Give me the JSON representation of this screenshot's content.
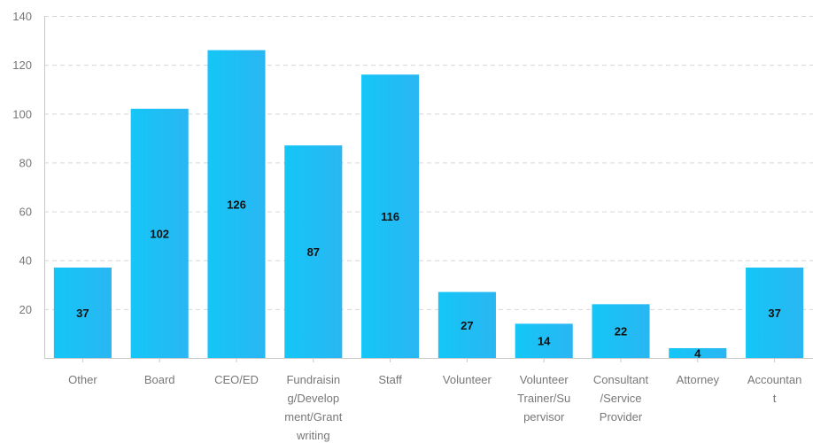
{
  "chart_data": {
    "type": "bar",
    "categories": [
      "Other",
      "Board",
      "CEO/ED",
      "Fundraising/Development/Grant writing",
      "Staff",
      "Volunteer",
      "Volunteer Trainer/Supervisor",
      "Consultant/Service Provider",
      "Attorney",
      "Accountant"
    ],
    "category_lines": [
      [
        "Other"
      ],
      [
        "Board"
      ],
      [
        "CEO/ED"
      ],
      [
        "Fundraisin",
        "g/Develop",
        "ment/Grant",
        "writing"
      ],
      [
        "Staff"
      ],
      [
        "Volunteer"
      ],
      [
        "Volunteer",
        "Trainer/Su",
        "pervisor"
      ],
      [
        "Consultant",
        "/Service",
        "Provider"
      ],
      [
        "Attorney"
      ],
      [
        "Accountan",
        "t"
      ]
    ],
    "values": [
      37,
      102,
      126,
      87,
      116,
      27,
      14,
      22,
      4,
      37
    ],
    "ylim": [
      0,
      140
    ],
    "yticks": [
      20,
      40,
      60,
      80,
      100,
      120,
      140
    ],
    "grid": true,
    "bar_color": "#1cc2f5",
    "bar_color_light": "#30b8f0",
    "title": "",
    "xlabel": "",
    "ylabel": ""
  }
}
